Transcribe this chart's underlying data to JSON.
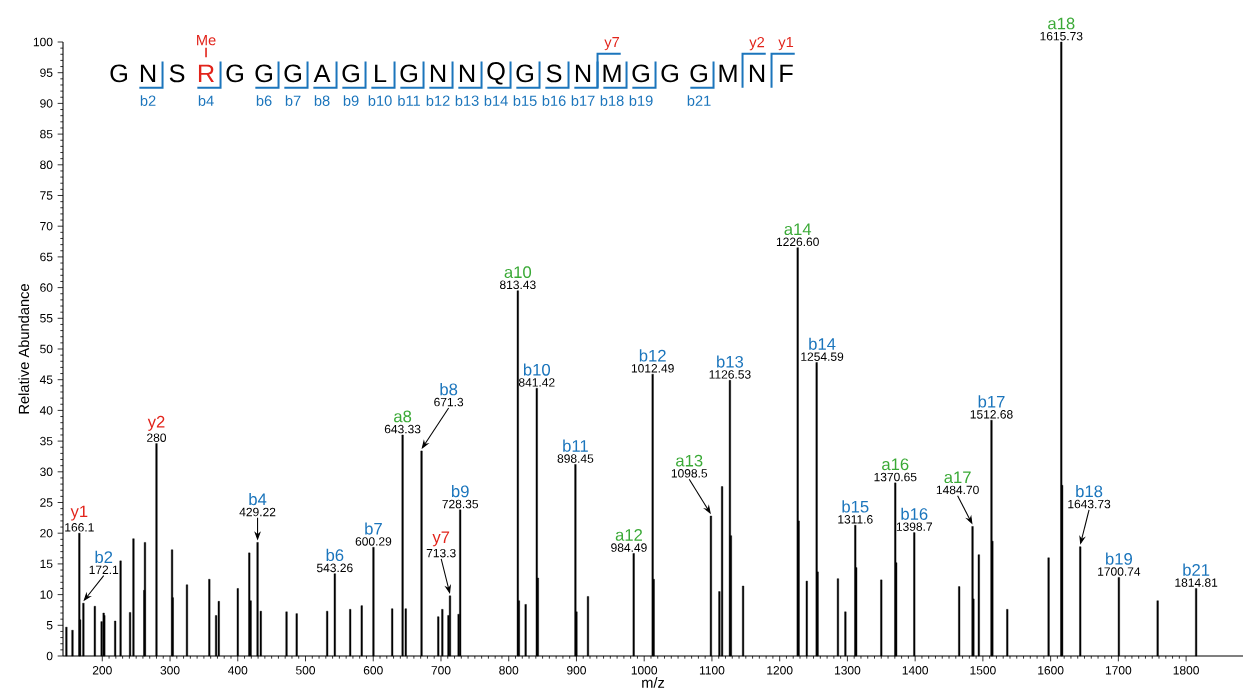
{
  "chart_data": [
    {
      "type": "bar",
      "xlabel": "m/z",
      "ylabel": "Relative Abundance",
      "color": "#000000",
      "x": [
        147,
        156,
        166.1,
        167.2,
        172.1,
        189,
        199,
        202,
        203,
        219,
        227,
        241,
        246,
        262,
        263,
        280,
        303,
        304,
        325,
        358,
        368,
        372,
        400,
        417,
        419,
        429.22,
        434,
        472,
        487,
        532,
        543.26,
        566,
        583,
        600.29,
        628,
        643.33,
        648,
        671.3,
        696,
        702,
        711,
        713.3,
        726,
        728.35,
        813.43,
        815,
        825,
        841.42,
        843,
        898.45,
        900,
        917,
        984.49,
        1012.49,
        1014,
        1098.5,
        1111,
        1115,
        1126.53,
        1128,
        1146,
        1226.6,
        1228,
        1240,
        1254.59,
        1256,
        1286,
        1297,
        1311.6,
        1313,
        1350,
        1370.65,
        1372,
        1398.7,
        1465,
        1484.7,
        1486,
        1494,
        1512.68,
        1514,
        1536,
        1597,
        1615.73,
        1617,
        1643.73,
        1700.74,
        1758,
        1814.81
      ],
      "values": [
        4.7,
        4.2,
        20,
        5.9,
        8.6,
        8.1,
        5.6,
        7.0,
        6.6,
        5.7,
        15.5,
        7.1,
        19.1,
        10.7,
        18.5,
        34.6,
        17.3,
        9.5,
        11.6,
        12.5,
        6.6,
        8.9,
        11.0,
        16.8,
        9.0,
        18.5,
        7.3,
        7.2,
        6.9,
        7.3,
        13.4,
        7.6,
        8.2,
        17.7,
        7.7,
        36.0,
        7.7,
        33.4,
        6.4,
        7.6,
        6.6,
        9.8,
        6.8,
        23.8,
        59.5,
        9.0,
        8.4,
        43.6,
        12.7,
        31.2,
        7.2,
        9.7,
        16.7,
        45.9,
        12.5,
        22.8,
        10.5,
        27.6,
        44.9,
        19.6,
        11.4,
        66.5,
        22.0,
        12.2,
        47.8,
        13.7,
        12.6,
        7.2,
        21.3,
        14.4,
        12.4,
        28.2,
        15.2,
        20.1,
        11.3,
        21.1,
        9.3,
        16.5,
        38.4,
        18.7,
        7.6,
        16.0,
        100,
        27.8,
        17.8,
        12.8,
        9.0,
        11.0
      ],
      "xlim": [
        142,
        1884
      ],
      "ylim": [
        0,
        100
      ],
      "xticks": [
        200,
        300,
        400,
        500,
        600,
        700,
        800,
        900,
        1000,
        1100,
        1200,
        1300,
        1400,
        1500,
        1600,
        1700,
        1800
      ],
      "yticks": [
        0,
        5,
        10,
        15,
        20,
        25,
        30,
        35,
        40,
        45,
        50,
        55,
        60,
        65,
        70,
        75,
        80,
        85,
        90,
        95,
        100
      ],
      "annotations": [
        {
          "text": "y1",
          "x": 166.1,
          "y": 20
        },
        {
          "text": "166.1",
          "x": 166.1,
          "y": 20
        },
        {
          "text": "b2",
          "x": 172.1,
          "y": 8.6
        },
        {
          "text": "172.1",
          "x": 172.1,
          "y": 8.6
        },
        {
          "text": "y2",
          "x": 280,
          "y": 34.6
        },
        {
          "text": "280",
          "x": 280,
          "y": 34.6
        },
        {
          "text": "b4",
          "x": 429.22,
          "y": 18.5
        },
        {
          "text": "429.22",
          "x": 429.22,
          "y": 18.5
        },
        {
          "text": "b6",
          "x": 543.26,
          "y": 13.4
        },
        {
          "text": "543.26",
          "x": 543.26,
          "y": 13.4
        },
        {
          "text": "b7",
          "x": 600.29,
          "y": 17.7
        },
        {
          "text": "600.29",
          "x": 600.29,
          "y": 17.7
        },
        {
          "text": "a8",
          "x": 643.33,
          "y": 36.0
        },
        {
          "text": "643.33",
          "x": 643.33,
          "y": 36.0
        },
        {
          "text": "b8",
          "x": 671.3,
          "y": 33.4
        },
        {
          "text": "671.3",
          "x": 671.3,
          "y": 33.4
        },
        {
          "text": "y7",
          "x": 713.3,
          "y": 9.8
        },
        {
          "text": "713.3",
          "x": 713.3,
          "y": 9.8
        },
        {
          "text": "b9",
          "x": 728.35,
          "y": 23.8
        },
        {
          "text": "728.35",
          "x": 728.35,
          "y": 23.8
        },
        {
          "text": "a10",
          "x": 813.43,
          "y": 59.5
        },
        {
          "text": "813.43",
          "x": 813.43,
          "y": 59.5
        },
        {
          "text": "b10",
          "x": 841.42,
          "y": 43.6
        },
        {
          "text": "841.42",
          "x": 841.42,
          "y": 43.6
        },
        {
          "text": "b11",
          "x": 898.45,
          "y": 31.2
        },
        {
          "text": "898.45",
          "x": 898.45,
          "y": 31.2
        },
        {
          "text": "a12",
          "x": 984.49,
          "y": 16.7
        },
        {
          "text": "984.49",
          "x": 984.49,
          "y": 16.7
        },
        {
          "text": "b12",
          "x": 1012.49,
          "y": 45.9
        },
        {
          "text": "1012.49",
          "x": 1012.49,
          "y": 45.9
        },
        {
          "text": "a13",
          "x": 1098.5,
          "y": 22.8
        },
        {
          "text": "1098.5",
          "x": 1098.5,
          "y": 22.8
        },
        {
          "text": "b13",
          "x": 1126.53,
          "y": 44.9
        },
        {
          "text": "1126.53",
          "x": 1126.53,
          "y": 44.9
        },
        {
          "text": "a14",
          "x": 1226.6,
          "y": 66.5
        },
        {
          "text": "1226.60",
          "x": 1226.6,
          "y": 66.5
        },
        {
          "text": "b14",
          "x": 1254.59,
          "y": 47.8
        },
        {
          "text": "1254.59",
          "x": 1254.59,
          "y": 47.8
        },
        {
          "text": "b15",
          "x": 1311.6,
          "y": 21.3
        },
        {
          "text": "1311.6",
          "x": 1311.6,
          "y": 21.3
        },
        {
          "text": "a16",
          "x": 1370.65,
          "y": 28.2
        },
        {
          "text": "1370.65",
          "x": 1370.65,
          "y": 28.2
        },
        {
          "text": "b16",
          "x": 1398.7,
          "y": 20.1
        },
        {
          "text": "1398.7",
          "x": 1398.7,
          "y": 20.1
        },
        {
          "text": "a17",
          "x": 1484.7,
          "y": 21.1
        },
        {
          "text": "1484.70",
          "x": 1484.7,
          "y": 21.1
        },
        {
          "text": "b17",
          "x": 1512.68,
          "y": 38.4
        },
        {
          "text": "1512.68",
          "x": 1512.68,
          "y": 38.4
        },
        {
          "text": "a18",
          "x": 1615.73,
          "y": 100
        },
        {
          "text": "1615.73",
          "x": 1615.73,
          "y": 100
        },
        {
          "text": "b18",
          "x": 1643.73,
          "y": 17.8
        },
        {
          "text": "1643.73",
          "x": 1643.73,
          "y": 17.8
        },
        {
          "text": "b19",
          "x": 1700.74,
          "y": 12.8
        },
        {
          "text": "1700.74",
          "x": 1700.74,
          "y": 12.8
        },
        {
          "text": "b21",
          "x": 1814.81,
          "y": 11.0
        },
        {
          "text": "1814.81",
          "x": 1814.81,
          "y": 11.0
        }
      ]
    },
    {
      "type": "other",
      "categories": [
        "G",
        "N",
        "S",
        "R",
        "G",
        "G",
        "G",
        "A",
        "G",
        "L",
        "G",
        "N",
        "N",
        "Q",
        "G",
        "S",
        "N",
        "M",
        "G",
        "G",
        "G",
        "M",
        "N",
        "F"
      ],
      "colors": [
        "#000000",
        "#000000",
        "#000000",
        "#e2231a",
        "#000000",
        "#000000",
        "#000000",
        "#000000",
        "#000000",
        "#000000",
        "#000000",
        "#000000",
        "#000000",
        "#000000",
        "#000000",
        "#000000",
        "#000000",
        "#000000",
        "#000000",
        "#000000",
        "#000000",
        "#000000",
        "#000000",
        "#000000"
      ],
      "annotations": [
        "Me",
        "b2",
        "b4",
        "b6",
        "b7",
        "b8",
        "b9",
        "b10",
        "b11",
        "b12",
        "b13",
        "b14",
        "b15",
        "b16",
        "b17",
        "b18",
        "b19",
        "b21",
        "y7",
        "y2",
        "y1"
      ]
    }
  ]
}
